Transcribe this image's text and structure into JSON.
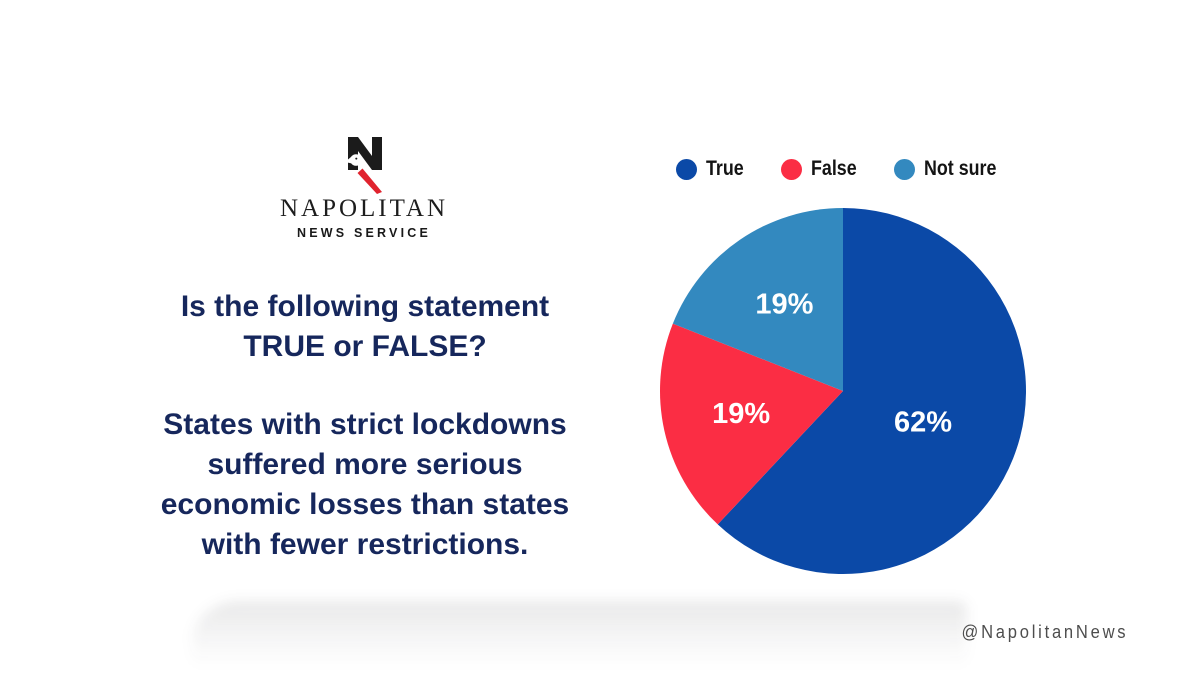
{
  "page": {
    "background": "#ffffff"
  },
  "brand": {
    "name": "NAPOLITAN",
    "subtitle": "NEWS SERVICE",
    "logo_black": "#1b1b1b",
    "logo_red": "#e0232e"
  },
  "question": {
    "text_color": "#16275c",
    "paragraph1_lines": [
      "Is the following statement",
      "TRUE or FALSE?"
    ],
    "paragraph2_lines": [
      "States with strict lockdowns",
      "suffered more serious",
      "economic losses than states",
      "with fewer restrictions."
    ]
  },
  "chart_data": {
    "type": "pie",
    "title": "",
    "categories": [
      "True",
      "False",
      "Not sure"
    ],
    "values": [
      62,
      19,
      19
    ],
    "unit": "%",
    "slice_labels": [
      "62%",
      "19%",
      "19%"
    ],
    "colors": [
      "#0b49a7",
      "#fb2d44",
      "#3389bf"
    ],
    "label_color": "#ffffff",
    "legend_position": "top",
    "legend_text_color": "#141414",
    "start_angle_deg": 0,
    "direction": "clockwise"
  },
  "footer": {
    "handle": "@NapolitanNews",
    "color": "#4d4d4d"
  }
}
